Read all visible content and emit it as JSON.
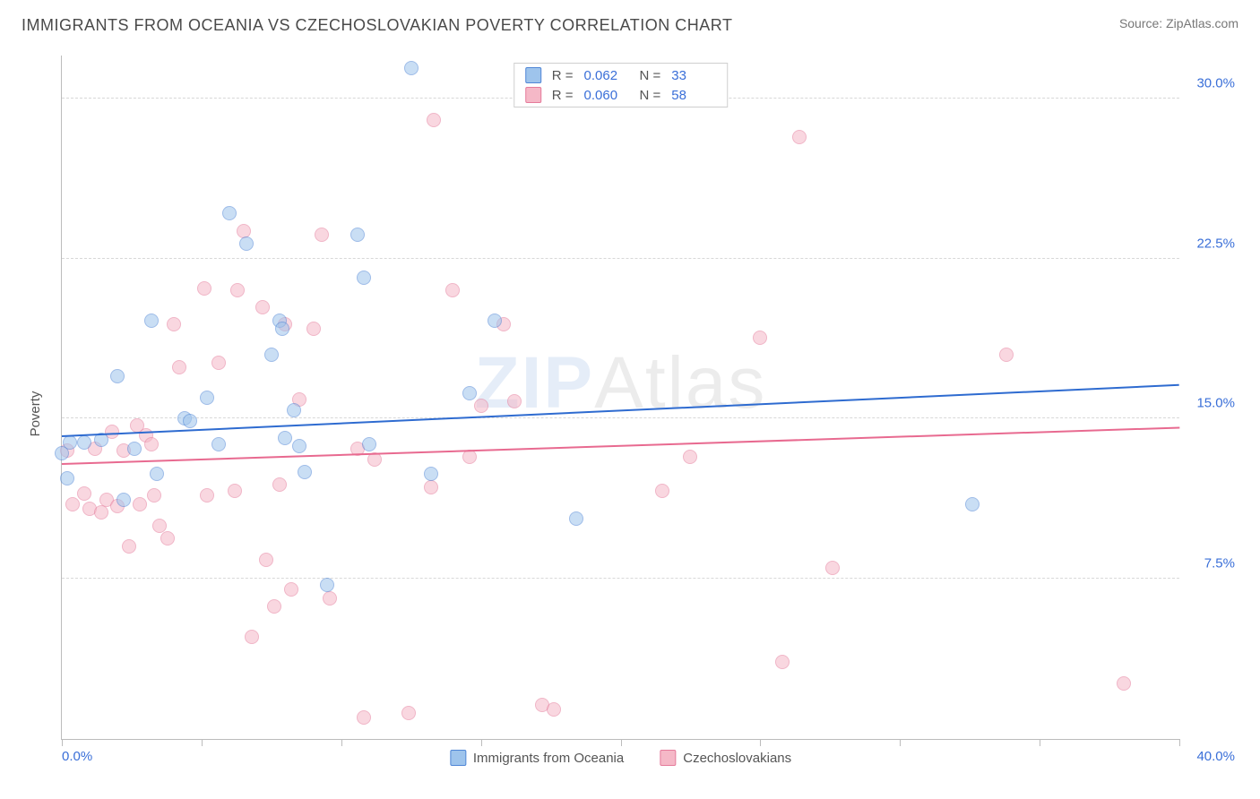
{
  "header": {
    "title": "IMMIGRANTS FROM OCEANIA VS CZECHOSLOVAKIAN POVERTY CORRELATION CHART",
    "source": "Source: ZipAtlas.com"
  },
  "watermark": {
    "bold": "ZIP",
    "thin": "Atlas"
  },
  "chart": {
    "type": "scatter",
    "ylabel": "Poverty",
    "xlim": [
      0,
      40
    ],
    "ylim": [
      0,
      32
    ],
    "x_min_label": "0.0%",
    "x_max_label": "40.0%",
    "xtick_positions": [
      0,
      5,
      10,
      15,
      20,
      25,
      30,
      35,
      40
    ],
    "yticks": [
      {
        "v": 7.5,
        "label": "7.5%"
      },
      {
        "v": 15.0,
        "label": "15.0%"
      },
      {
        "v": 22.5,
        "label": "22.5%"
      },
      {
        "v": 30.0,
        "label": "30.0%"
      }
    ],
    "background_color": "#ffffff",
    "grid_color": "#d8d8d8",
    "axis_color": "#bcbcbc",
    "point_radius": 8,
    "point_opacity": 0.55,
    "series": [
      {
        "key": "oceania",
        "name": "Immigrants from Oceania",
        "point_fill": "#9ec4ec",
        "point_stroke": "#4f86d6",
        "trend_color": "#2e6bd0",
        "trend_y_at_xmin": 14.2,
        "trend_y_at_xmax": 16.6,
        "R": "0.062",
        "N": "33",
        "points": [
          [
            0.2,
            12.2
          ],
          [
            0.3,
            13.9
          ],
          [
            0.8,
            13.9
          ],
          [
            1.4,
            14.0
          ],
          [
            2.0,
            17.0
          ],
          [
            2.2,
            11.2
          ],
          [
            2.6,
            13.6
          ],
          [
            3.2,
            19.6
          ],
          [
            3.4,
            12.4
          ],
          [
            4.4,
            15.0
          ],
          [
            4.6,
            14.9
          ],
          [
            5.2,
            16.0
          ],
          [
            5.6,
            13.8
          ],
          [
            6.0,
            24.6
          ],
          [
            6.6,
            23.2
          ],
          [
            7.5,
            18.0
          ],
          [
            7.8,
            19.6
          ],
          [
            7.9,
            19.2
          ],
          [
            8.3,
            15.4
          ],
          [
            8.5,
            13.7
          ],
          [
            8.7,
            12.5
          ],
          [
            9.5,
            7.2
          ],
          [
            10.6,
            23.6
          ],
          [
            10.8,
            21.6
          ],
          [
            11.0,
            13.8
          ],
          [
            12.5,
            31.4
          ],
          [
            13.2,
            12.4
          ],
          [
            14.6,
            16.2
          ],
          [
            15.5,
            19.6
          ],
          [
            18.4,
            10.3
          ],
          [
            32.6,
            11.0
          ],
          [
            0.0,
            13.4
          ],
          [
            8.0,
            14.1
          ]
        ]
      },
      {
        "key": "czech",
        "name": "Czechoslovakians",
        "point_fill": "#f5b8c7",
        "point_stroke": "#e57a9a",
        "trend_color": "#e86a90",
        "trend_y_at_xmin": 12.9,
        "trend_y_at_xmax": 14.6,
        "R": "0.060",
        "N": "58",
        "points": [
          [
            0.2,
            13.5
          ],
          [
            0.4,
            11.0
          ],
          [
            0.8,
            11.5
          ],
          [
            1.0,
            10.8
          ],
          [
            1.2,
            13.6
          ],
          [
            1.4,
            10.6
          ],
          [
            1.6,
            11.2
          ],
          [
            1.8,
            14.4
          ],
          [
            2.0,
            10.9
          ],
          [
            2.2,
            13.5
          ],
          [
            2.4,
            9.0
          ],
          [
            2.7,
            14.7
          ],
          [
            2.8,
            11.0
          ],
          [
            3.0,
            14.2
          ],
          [
            3.2,
            13.8
          ],
          [
            3.3,
            11.4
          ],
          [
            3.5,
            10.0
          ],
          [
            3.8,
            9.4
          ],
          [
            4.0,
            19.4
          ],
          [
            4.2,
            17.4
          ],
          [
            5.1,
            21.1
          ],
          [
            5.2,
            11.4
          ],
          [
            5.6,
            17.6
          ],
          [
            6.2,
            11.6
          ],
          [
            6.3,
            21.0
          ],
          [
            6.5,
            23.8
          ],
          [
            6.8,
            4.8
          ],
          [
            7.2,
            20.2
          ],
          [
            7.3,
            8.4
          ],
          [
            7.6,
            6.2
          ],
          [
            7.8,
            11.9
          ],
          [
            8.0,
            19.4
          ],
          [
            8.2,
            7.0
          ],
          [
            8.5,
            15.9
          ],
          [
            9.0,
            19.2
          ],
          [
            9.3,
            23.6
          ],
          [
            9.6,
            6.6
          ],
          [
            10.6,
            13.6
          ],
          [
            10.8,
            1.0
          ],
          [
            11.2,
            13.1
          ],
          [
            12.4,
            1.2
          ],
          [
            13.2,
            11.8
          ],
          [
            13.3,
            29.0
          ],
          [
            14.0,
            21.0
          ],
          [
            14.6,
            13.2
          ],
          [
            15.0,
            15.6
          ],
          [
            15.8,
            19.4
          ],
          [
            16.2,
            15.8
          ],
          [
            17.2,
            1.6
          ],
          [
            17.6,
            1.4
          ],
          [
            21.5,
            11.6
          ],
          [
            22.5,
            13.2
          ],
          [
            25.0,
            18.8
          ],
          [
            26.4,
            28.2
          ],
          [
            27.6,
            8.0
          ],
          [
            33.8,
            18.0
          ],
          [
            38.0,
            2.6
          ],
          [
            25.8,
            3.6
          ]
        ]
      }
    ]
  },
  "legend": {
    "r_label": "R  =",
    "n_label": "N  ="
  }
}
